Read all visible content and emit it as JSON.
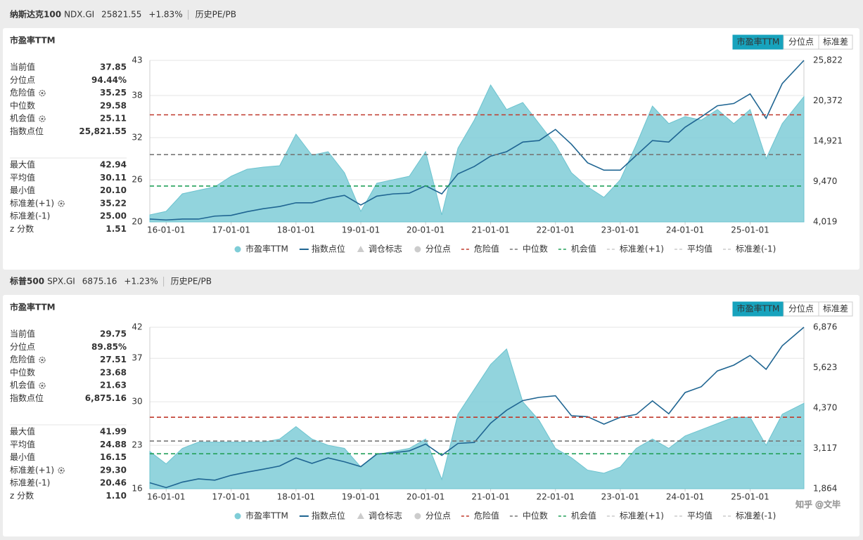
{
  "watermark": "知乎 @文毕",
  "chart_data": [
    {
      "type": "area",
      "index_name": "纳斯达克100",
      "code": "NDX.GI",
      "price": "25821.55",
      "change": "+1.83%",
      "tab": "历史PE/PB",
      "title": "市盈率TTM",
      "buttons": [
        "市盈率TTM",
        "分位点",
        "标准差"
      ],
      "stats": [
        [
          {
            "label": "当前值",
            "value": "37.85"
          },
          {
            "label": "分位点",
            "value": "94.44%"
          },
          {
            "label": "危险值",
            "value": "35.25",
            "icon": true
          },
          {
            "label": "中位数",
            "value": "29.58"
          },
          {
            "label": "机会值",
            "value": "25.11",
            "icon": true
          },
          {
            "label": "指数点位",
            "value": "25,821.55"
          }
        ],
        [
          {
            "label": "最大值",
            "value": "42.94"
          },
          {
            "label": "平均值",
            "value": "30.11"
          },
          {
            "label": "最小值",
            "value": "20.10"
          },
          {
            "label": "标准差(+1)",
            "value": "35.22",
            "icon": true
          },
          {
            "label": "标准差(-1)",
            "value": "25.00"
          },
          {
            "label": "z 分数",
            "value": "1.51"
          }
        ]
      ],
      "x": [
        "2015-10-01",
        "2016-01-01",
        "2016-04-01",
        "2016-07-01",
        "2016-10-01",
        "2017-01-01",
        "2017-04-01",
        "2017-07-01",
        "2017-10-01",
        "2018-01-01",
        "2018-04-01",
        "2018-07-01",
        "2018-10-01",
        "2019-01-01",
        "2019-04-01",
        "2019-07-01",
        "2019-10-01",
        "2020-01-01",
        "2020-04-01",
        "2020-07-01",
        "2020-10-01",
        "2021-01-01",
        "2021-04-01",
        "2021-07-01",
        "2021-10-01",
        "2022-01-01",
        "2022-04-01",
        "2022-07-01",
        "2022-10-01",
        "2023-01-01",
        "2023-04-01",
        "2023-07-01",
        "2023-10-01",
        "2024-01-01",
        "2024-04-01",
        "2024-07-01",
        "2024-10-01",
        "2025-01-01",
        "2025-04-01",
        "2025-07-01",
        "2025-10-31"
      ],
      "xlim": [
        "2015-10-01",
        "2025-10-31"
      ],
      "xticks": [
        {
          "value": "2016-01-01",
          "label": "16-01-01"
        },
        {
          "value": "2017-01-01",
          "label": "17-01-01"
        },
        {
          "value": "2018-01-01",
          "label": "18-01-01"
        },
        {
          "value": "2019-01-01",
          "label": "19-01-01"
        },
        {
          "value": "2020-01-01",
          "label": "20-01-01"
        },
        {
          "value": "2021-01-01",
          "label": "21-01-01"
        },
        {
          "value": "2022-01-01",
          "label": "22-01-01"
        },
        {
          "value": "2023-01-01",
          "label": "23-01-01"
        },
        {
          "value": "2024-01-01",
          "label": "24-01-01"
        },
        {
          "value": "2025-01-01",
          "label": "25-01-01"
        }
      ],
      "ylim": [
        20,
        43
      ],
      "yticks": [
        20,
        26,
        32,
        38,
        43
      ],
      "y2lim": [
        4019,
        25822
      ],
      "y2ticks": [
        {
          "value": 4019,
          "label": "4,019"
        },
        {
          "value": 9470,
          "label": "9,470"
        },
        {
          "value": 14921,
          "label": "14,921"
        },
        {
          "value": 20372,
          "label": "20,372"
        },
        {
          "value": 25822,
          "label": "25,822"
        }
      ],
      "grid": true,
      "series": [
        {
          "name": "市盈率TTM",
          "color": "#7fcdd7",
          "values": [
            21,
            21.5,
            24,
            24.5,
            25,
            26.5,
            27.5,
            27.8,
            28,
            32.5,
            29.5,
            30,
            27,
            21.5,
            25.5,
            26,
            26.5,
            30,
            21,
            30.5,
            34.5,
            39.5,
            36,
            37,
            34,
            31,
            27,
            25,
            23.5,
            26,
            31,
            36.5,
            34,
            35,
            34.5,
            36,
            34,
            36,
            29,
            34,
            37.85
          ]
        },
        {
          "name": "指数点位",
          "type": "line",
          "axis": "y2",
          "color": "#1f6592",
          "values": [
            4400,
            4280,
            4400,
            4400,
            4800,
            4900,
            5400,
            5800,
            6100,
            6600,
            6600,
            7200,
            7600,
            6300,
            7500,
            7800,
            7900,
            8900,
            7800,
            10500,
            11500,
            12900,
            13500,
            14800,
            15000,
            16500,
            14500,
            12000,
            11000,
            11000,
            13000,
            15000,
            14800,
            16800,
            18200,
            19700,
            20000,
            21300,
            18000,
            22700,
            25821.55
          ]
        }
      ],
      "inactive_series": [
        {
          "name": "调仓标志",
          "shape": "triangle"
        },
        {
          "name": "分位点",
          "shape": "dot"
        }
      ],
      "reference_lines": [
        {
          "name": "危险值",
          "value": 35.25,
          "color": "#c0392b"
        },
        {
          "name": "中位数",
          "value": 29.58,
          "color": "#777777"
        },
        {
          "name": "机会值",
          "value": 25.11,
          "color": "#23a05a"
        }
      ],
      "inactive_lines": [
        "标准差(+1)",
        "平均值",
        "标准差(-1)"
      ]
    },
    {
      "type": "area",
      "index_name": "标普500",
      "code": "SPX.GI",
      "price": "6875.16",
      "change": "+1.23%",
      "tab": "历史PE/PB",
      "title": "市盈率TTM",
      "buttons": [
        "市盈率TTM",
        "分位点",
        "标准差"
      ],
      "stats": [
        [
          {
            "label": "当前值",
            "value": "29.75"
          },
          {
            "label": "分位点",
            "value": "89.85%"
          },
          {
            "label": "危险值",
            "value": "27.51",
            "icon": true
          },
          {
            "label": "中位数",
            "value": "23.68"
          },
          {
            "label": "机会值",
            "value": "21.63",
            "icon": true
          },
          {
            "label": "指数点位",
            "value": "6,875.16"
          }
        ],
        [
          {
            "label": "最大值",
            "value": "41.99"
          },
          {
            "label": "平均值",
            "value": "24.88"
          },
          {
            "label": "最小值",
            "value": "16.15"
          },
          {
            "label": "标准差(+1)",
            "value": "29.30",
            "icon": true
          },
          {
            "label": "标准差(-1)",
            "value": "20.46"
          },
          {
            "label": "z 分数",
            "value": "1.10"
          }
        ]
      ],
      "x": [
        "2015-10-01",
        "2016-01-01",
        "2016-04-01",
        "2016-07-01",
        "2016-10-01",
        "2017-01-01",
        "2017-04-01",
        "2017-07-01",
        "2017-10-01",
        "2018-01-01",
        "2018-04-01",
        "2018-07-01",
        "2018-10-01",
        "2019-01-01",
        "2019-04-01",
        "2019-07-01",
        "2019-10-01",
        "2020-01-01",
        "2020-04-01",
        "2020-07-01",
        "2020-10-01",
        "2021-01-01",
        "2021-04-01",
        "2021-07-01",
        "2021-10-01",
        "2022-01-01",
        "2022-04-01",
        "2022-07-01",
        "2022-10-01",
        "2023-01-01",
        "2023-04-01",
        "2023-07-01",
        "2023-10-01",
        "2024-01-01",
        "2024-04-01",
        "2024-07-01",
        "2024-10-01",
        "2025-01-01",
        "2025-04-01",
        "2025-07-01",
        "2025-10-31"
      ],
      "xlim": [
        "2015-10-01",
        "2025-10-31"
      ],
      "xticks": [
        {
          "value": "2016-01-01",
          "label": "16-01-01"
        },
        {
          "value": "2017-01-01",
          "label": "17-01-01"
        },
        {
          "value": "2018-01-01",
          "label": "18-01-01"
        },
        {
          "value": "2019-01-01",
          "label": "19-01-01"
        },
        {
          "value": "2020-01-01",
          "label": "20-01-01"
        },
        {
          "value": "2021-01-01",
          "label": "21-01-01"
        },
        {
          "value": "2022-01-01",
          "label": "22-01-01"
        },
        {
          "value": "2023-01-01",
          "label": "23-01-01"
        },
        {
          "value": "2024-01-01",
          "label": "24-01-01"
        },
        {
          "value": "2025-01-01",
          "label": "25-01-01"
        }
      ],
      "ylim": [
        16,
        42
      ],
      "yticks": [
        16,
        23,
        30,
        37,
        42
      ],
      "y2lim": [
        1864,
        6876
      ],
      "y2ticks": [
        {
          "value": 1864,
          "label": "1,864"
        },
        {
          "value": 3117,
          "label": "3,117"
        },
        {
          "value": 4370,
          "label": "4,370"
        },
        {
          "value": 5623,
          "label": "5,623"
        },
        {
          "value": 6876,
          "label": "6,876"
        }
      ],
      "grid": true,
      "series": [
        {
          "name": "市盈率TTM",
          "color": "#7fcdd7",
          "values": [
            22,
            20,
            22.5,
            23.5,
            23.5,
            23.5,
            23.5,
            23.5,
            24,
            26,
            24,
            23,
            22.5,
            19.5,
            21.5,
            22,
            22.5,
            24,
            17.5,
            28,
            32,
            36,
            38.5,
            30,
            27,
            22.5,
            21,
            19,
            18.5,
            19.5,
            22.5,
            24,
            22.5,
            24.5,
            25.5,
            26.5,
            27.5,
            27.5,
            23,
            28,
            29.75
          ]
        },
        {
          "name": "指数点位",
          "type": "line",
          "axis": "y2",
          "color": "#1f6592",
          "values": [
            2050,
            1900,
            2070,
            2170,
            2130,
            2280,
            2380,
            2470,
            2570,
            2820,
            2650,
            2820,
            2700,
            2550,
            2940,
            2980,
            3040,
            3250,
            2900,
            3270,
            3300,
            3900,
            4300,
            4600,
            4700,
            4750,
            4130,
            4100,
            3870,
            4080,
            4170,
            4590,
            4190,
            4850,
            5030,
            5520,
            5700,
            6000,
            5570,
            6300,
            6875.16
          ]
        }
      ],
      "inactive_series": [
        {
          "name": "调仓标志",
          "shape": "triangle"
        },
        {
          "name": "分位点",
          "shape": "dot"
        }
      ],
      "reference_lines": [
        {
          "name": "危险值",
          "value": 27.51,
          "color": "#c0392b"
        },
        {
          "name": "中位数",
          "value": 23.68,
          "color": "#777777"
        },
        {
          "name": "机会值",
          "value": 21.63,
          "color": "#23a05a"
        }
      ],
      "inactive_lines": [
        "标准差(+1)",
        "平均值",
        "标准差(-1)"
      ]
    }
  ]
}
